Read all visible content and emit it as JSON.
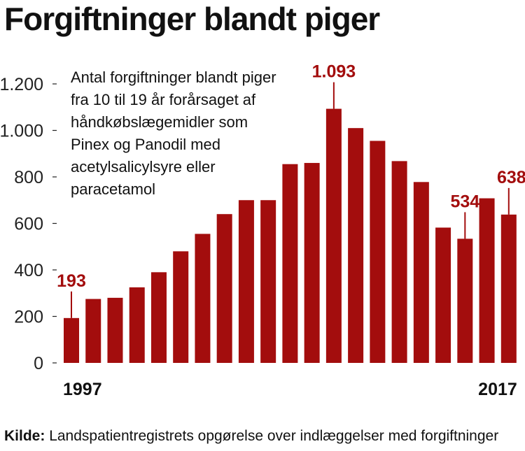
{
  "title": "Forgiftninger blandt piger",
  "source_label": "Kilde:",
  "source_text": "Landspatientregistrets opgørelse over indlæggelser med forgiftninger",
  "colors": {
    "bar": "#a30d0d",
    "annotation": "#a30d0d",
    "axis": "#222222"
  },
  "chart_data": {
    "type": "bar",
    "subtitle_lines": [
      "Antal forgiftninger blandt piger",
      "fra 10 til 19 år forårsaget af",
      "håndkøbslægemidler som",
      "Pinex og Panodil med",
      "acetylsalicylsyre eller",
      "paracetamol"
    ],
    "categories": [
      "1997",
      "1998",
      "1999",
      "2000",
      "2001",
      "2002",
      "2003",
      "2004",
      "2005",
      "2006",
      "2007",
      "2008",
      "2009",
      "2010",
      "2011",
      "2012",
      "2013",
      "2014",
      "2015",
      "2016",
      "2017"
    ],
    "values": [
      193,
      275,
      280,
      325,
      390,
      480,
      555,
      640,
      700,
      700,
      855,
      860,
      1093,
      1010,
      955,
      868,
      778,
      582,
      534,
      708,
      638
    ],
    "x_axis_labels": [
      {
        "category": "1997",
        "text": "1997"
      },
      {
        "category": "2017",
        "text": "2017"
      }
    ],
    "y_ticks": [
      0,
      200,
      400,
      600,
      800,
      1000,
      1200
    ],
    "y_tick_labels": [
      "0",
      "200",
      "400",
      "600",
      "800",
      "1.000",
      "1.200"
    ],
    "ylim": [
      0,
      1200
    ],
    "annotations": [
      {
        "category": "1997",
        "text": "193"
      },
      {
        "category": "2009",
        "text": "1.093"
      },
      {
        "category": "2015",
        "text": "534"
      },
      {
        "category": "2017",
        "text": "638"
      }
    ],
    "grid": false
  }
}
